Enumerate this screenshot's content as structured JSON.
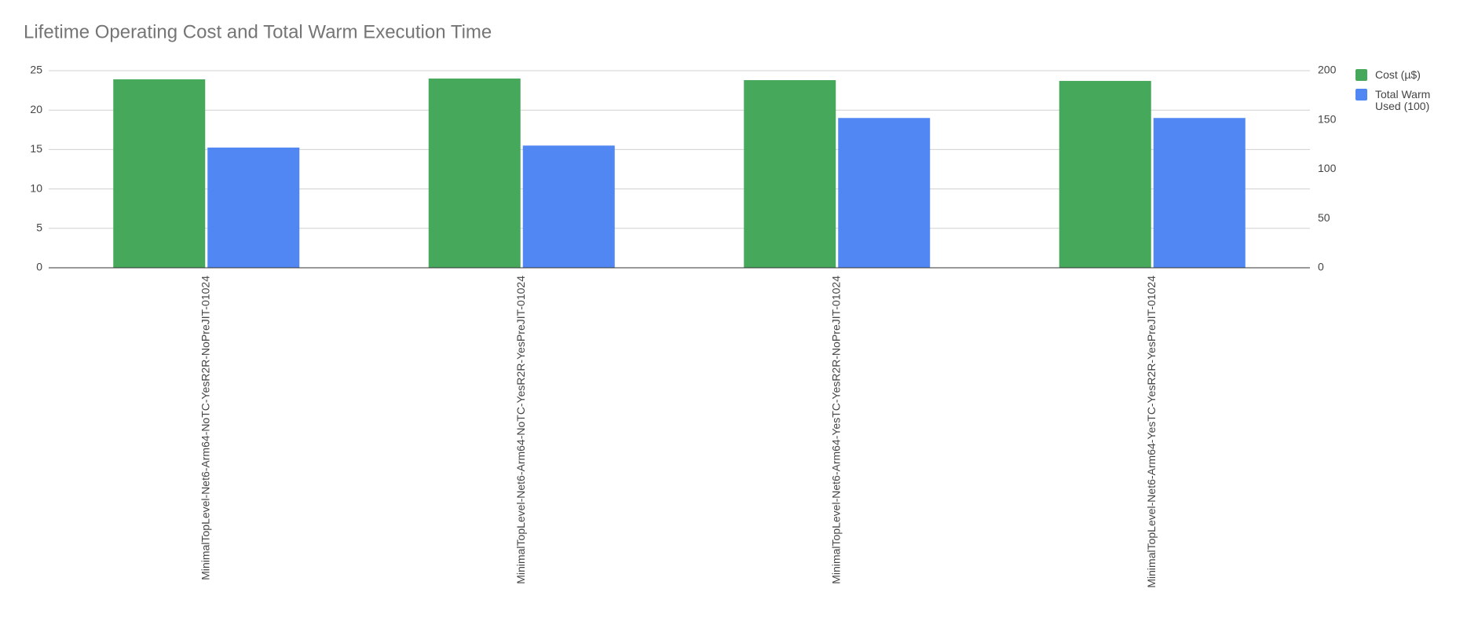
{
  "chart_data": {
    "type": "bar",
    "title": "Lifetime Operating Cost and Total Warm Execution Time",
    "categories": [
      "MinimalTopLevel-Net6-Arm64-NoTC-YesR2R-NoPreJIT-01024",
      "MinimalTopLevel-Net6-Arm64-NoTC-YesR2R-YesPreJIT-01024",
      "MinimalTopLevel-Net6-Arm64-YesTC-YesR2R-NoPreJIT-01024",
      "MinimalTopLevel-Net6-Arm64-YesTC-YesR2R-YesPreJIT-01024"
    ],
    "series": [
      {
        "name": "Cost (µ$)",
        "color": "#46a85a",
        "values": [
          23.9,
          24.0,
          23.8,
          23.7
        ]
      },
      {
        "name": "Total Warm Used (100)",
        "color": "#5087f2",
        "axis": "y2",
        "values": [
          122,
          124,
          152,
          152
        ]
      }
    ],
    "ylim": [
      0,
      25
    ],
    "yticks": [
      0,
      5,
      10,
      15,
      20,
      25
    ],
    "y2lim": [
      0,
      200
    ],
    "y2ticks": [
      0,
      50,
      100,
      150,
      200
    ],
    "grid": true,
    "legend": "right"
  }
}
